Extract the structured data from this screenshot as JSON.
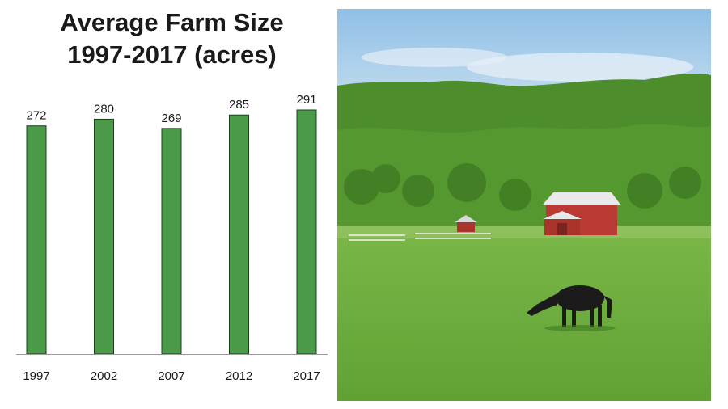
{
  "chart_data": {
    "type": "bar",
    "title_lines": [
      "Average Farm Size",
      "1997-2017 (acres)"
    ],
    "categories": [
      "1997",
      "2002",
      "2007",
      "2012",
      "2017"
    ],
    "values": [
      272,
      280,
      269,
      285,
      291
    ],
    "data_labels": [
      "272",
      "280",
      "269",
      "285",
      "291"
    ],
    "xlabel": "",
    "ylabel": "",
    "ylim": [
      0,
      291
    ],
    "grid": false,
    "legend": "none",
    "bar_color": "#4a9a4a",
    "bar_edge_color": "#1f3d1f"
  },
  "photo": {
    "subject": "cow-grazing-in-pasture-with-red-barn",
    "colors": {
      "sky": "#a9cde8",
      "hills": "#4f8f2a",
      "grass": "#6cae3e",
      "barn": "#b83a32",
      "roof": "#e8e8e8",
      "cow": "#1c1a1a"
    }
  }
}
